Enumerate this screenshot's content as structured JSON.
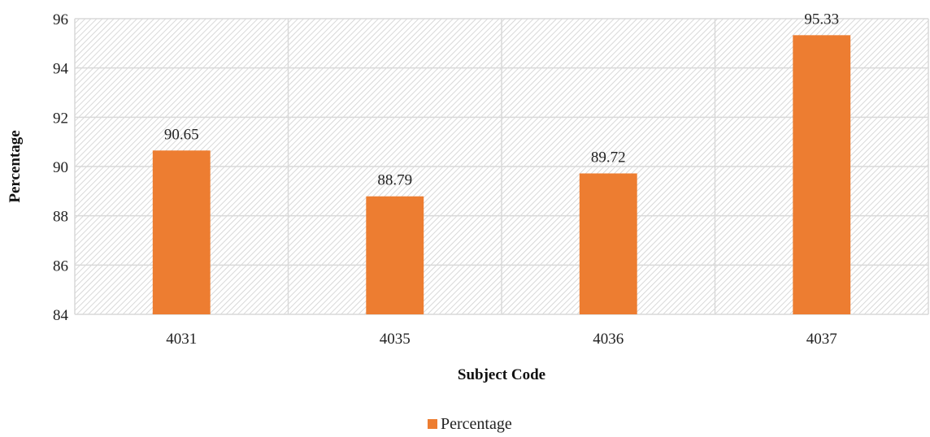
{
  "chart_data": {
    "type": "bar",
    "categories": [
      "4031",
      "4035",
      "4036",
      "4037"
    ],
    "series": [
      {
        "name": "Percentage",
        "values": [
          90.65,
          88.79,
          89.72,
          95.33
        ]
      }
    ],
    "data_labels": [
      "90.65",
      "88.79",
      "89.72",
      "95.33"
    ],
    "xlabel": "Subject Code",
    "ylabel": "Percentage",
    "ylim": [
      84,
      96
    ],
    "yticks": [
      84,
      86,
      88,
      90,
      92,
      94,
      96
    ],
    "grid": true,
    "plot_background": "hatched",
    "legend_position": "bottom",
    "colors": {
      "bar": "#ED7D31",
      "grid": "#d9d9d9",
      "hatch": "#cfcfcf"
    }
  }
}
